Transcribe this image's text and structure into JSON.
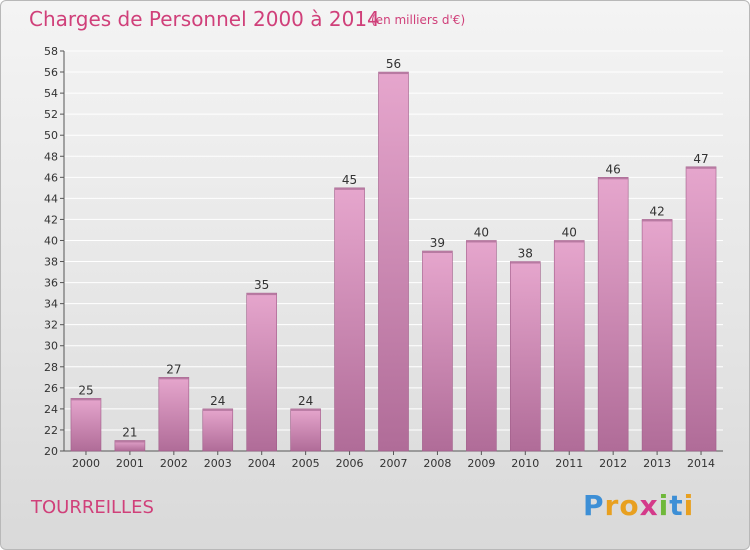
{
  "title": "Charges de Personnel 2000 à 2014",
  "subtitle": "(en milliers d'€)",
  "town": "TOURREILLES",
  "logo": {
    "letters": [
      "P",
      "r",
      "o",
      "x",
      "i",
      "t",
      "i"
    ],
    "colors": [
      "#3d8fd6",
      "#e8a020",
      "#e8a020",
      "#d43a8a",
      "#6fb83a",
      "#3d8fd6",
      "#e8a020"
    ]
  },
  "colors": {
    "title": "#d0407a",
    "bar_top": "#e6a6cd",
    "bar_bottom": "#b06c98"
  },
  "chart_data": {
    "type": "bar",
    "title": "Charges de Personnel 2000 à 2014",
    "subtitle": "(en milliers d'€)",
    "categories": [
      "2000",
      "2001",
      "2002",
      "2003",
      "2004",
      "2005",
      "2006",
      "2007",
      "2008",
      "2009",
      "2010",
      "2011",
      "2012",
      "2013",
      "2014"
    ],
    "values": [
      25,
      21,
      27,
      24,
      35,
      24,
      45,
      56,
      39,
      40,
      38,
      40,
      46,
      42,
      47
    ],
    "ylim": [
      20,
      58
    ],
    "ytick_step": 2,
    "grid": true
  }
}
